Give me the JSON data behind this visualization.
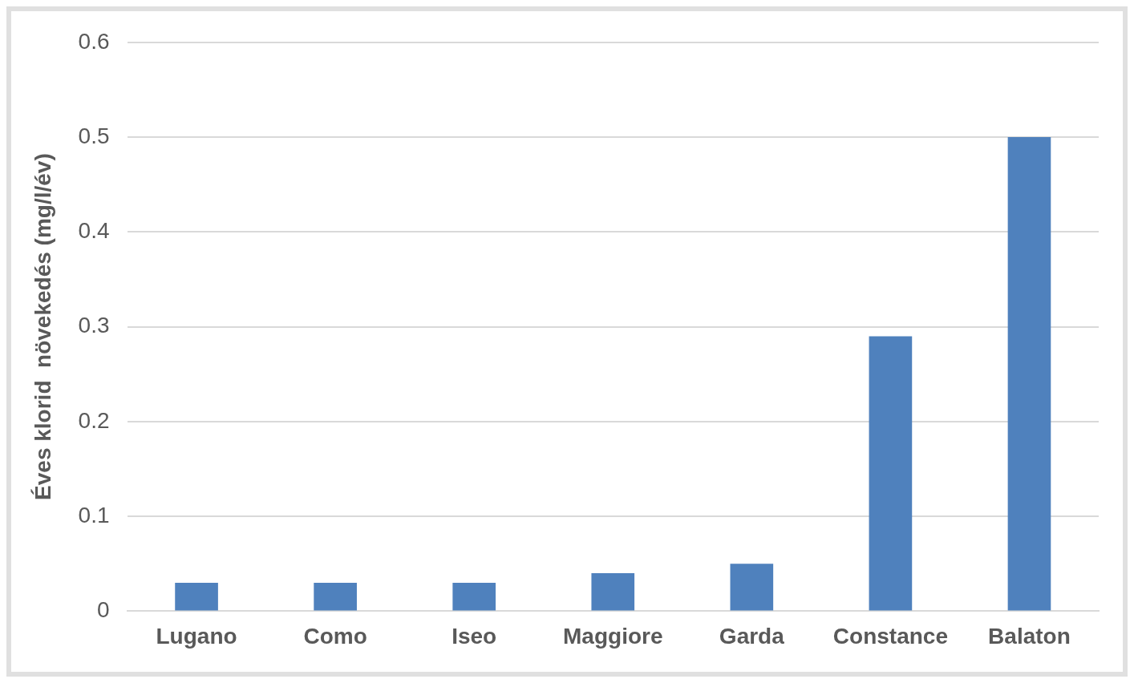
{
  "chart_data": {
    "type": "bar",
    "ylabel": "Éves klorid  növekedés (mg/l/év)",
    "categories": [
      "Lugano",
      "Como",
      "Iseo",
      "Maggiore",
      "Garda",
      "Constance",
      "Balaton"
    ],
    "values": [
      0.03,
      0.03,
      0.03,
      0.04,
      0.05,
      0.29,
      0.5
    ],
    "color": "#4f81bd",
    "ylim": [
      0,
      0.6
    ],
    "yticks": [
      0,
      0.1,
      0.2,
      0.3,
      0.4,
      0.5,
      0.6
    ],
    "grid": "y",
    "legend": false
  }
}
